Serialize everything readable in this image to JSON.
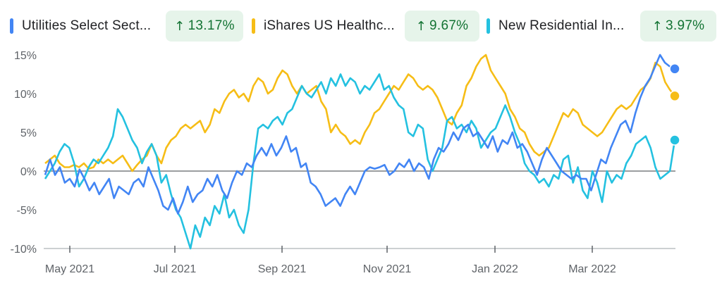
{
  "chart_data": {
    "type": "line",
    "x_ticks": [
      "May 2021",
      "Jul 2021",
      "Sep 2021",
      "Nov 2021",
      "Jan 2022",
      "Mar 2022"
    ],
    "y_ticks": [
      "15%",
      "10%",
      "5%",
      "0%",
      "-5%",
      "-10%"
    ],
    "ylim": [
      -10,
      15
    ],
    "grid": false,
    "legend_position": "top",
    "series": [
      {
        "name": "Utilities Select Sect...",
        "change": "13.17%",
        "color": "#4285f4",
        "values": [
          -0.5,
          1.5,
          -0.5,
          0.5,
          -1.5,
          -1.0,
          -2.0,
          0.2,
          -1.0,
          -2.5,
          -1.5,
          -3.0,
          -2.0,
          -1.0,
          -3.5,
          -2.0,
          -2.5,
          -3.0,
          -1.5,
          -1.0,
          -2.0,
          0.5,
          -1.0,
          -2.5,
          -4.5,
          -5.0,
          -3.5,
          -5.5,
          -4.0,
          -2.0,
          -4.0,
          -3.0,
          -2.5,
          -1.0,
          -2.0,
          -0.5,
          -2.5,
          -3.5,
          -1.5,
          0.0,
          -0.5,
          1.0,
          0.5,
          2.0,
          3.0,
          2.0,
          3.5,
          2.0,
          3.0,
          4.5,
          2.5,
          3.0,
          0.5,
          1.0,
          -1.5,
          -2.0,
          -3.0,
          -4.5,
          -4.0,
          -3.5,
          -4.5,
          -3.0,
          -2.0,
          -3.0,
          -1.5,
          0.0,
          0.5,
          0.3,
          0.5,
          0.8,
          -0.5,
          0.0,
          1.0,
          0.5,
          1.5,
          0.0,
          1.0,
          0.5,
          -1.0,
          1.5,
          3.0,
          2.5,
          3.5,
          5.0,
          4.0,
          5.5,
          6.0,
          4.5,
          5.0,
          4.0,
          3.0,
          4.5,
          2.5,
          4.0,
          3.5,
          5.0,
          3.0,
          3.5,
          2.5,
          1.0,
          -0.5,
          1.5,
          3.0,
          2.0,
          1.0,
          0.0,
          -0.5,
          -1.0,
          -0.5,
          -1.0,
          -1.0,
          -2.5,
          -0.5,
          1.5,
          1.0,
          3.0,
          4.5,
          6.0,
          6.5,
          5.0,
          7.5,
          9.5,
          11.0,
          12.0,
          13.5,
          15.0,
          14.0,
          13.5,
          13.2
        ],
        "end_value": 13.2
      },
      {
        "name": "iShares US Healthc...",
        "change": "9.67%",
        "color": "#f6bd16",
        "values": [
          1.0,
          1.5,
          2.0,
          1.0,
          0.5,
          0.5,
          0.8,
          0.5,
          1.0,
          0.3,
          0.5,
          1.5,
          1.0,
          1.5,
          1.0,
          1.5,
          2.0,
          1.0,
          0.0,
          0.8,
          1.5,
          2.0,
          3.5,
          2.0,
          1.0,
          3.0,
          4.0,
          4.5,
          5.5,
          6.0,
          5.5,
          6.0,
          6.5,
          5.0,
          6.0,
          8.0,
          7.5,
          9.0,
          10.0,
          10.5,
          9.5,
          10.0,
          9.0,
          11.0,
          12.0,
          11.5,
          10.0,
          10.5,
          12.0,
          13.0,
          12.5,
          11.0,
          10.0,
          11.0,
          10.0,
          10.5,
          11.0,
          9.0,
          8.0,
          5.0,
          6.0,
          5.0,
          4.5,
          3.5,
          4.0,
          3.5,
          5.0,
          6.0,
          7.5,
          8.0,
          9.0,
          10.0,
          11.0,
          10.5,
          11.5,
          12.5,
          12.0,
          11.0,
          10.5,
          11.0,
          10.5,
          9.5,
          8.0,
          6.5,
          6.0,
          7.5,
          8.5,
          11.0,
          12.0,
          13.5,
          14.5,
          15.0,
          13.0,
          12.0,
          11.0,
          10.0,
          8.0,
          7.0,
          5.5,
          5.0,
          3.5,
          2.5,
          2.0,
          2.5,
          3.0,
          4.5,
          6.0,
          7.5,
          7.0,
          8.0,
          7.5,
          6.0,
          5.5,
          5.0,
          4.5,
          5.0,
          6.0,
          7.0,
          8.0,
          8.5,
          8.0,
          8.5,
          9.5,
          10.5,
          11.0,
          12.0,
          14.0,
          13.5,
          11.5,
          10.5,
          9.7
        ],
        "end_value": 9.7
      },
      {
        "name": "New Residential In...",
        "change": "3.97%",
        "color": "#24c1e0",
        "values": [
          -1.0,
          0.0,
          1.0,
          2.5,
          3.5,
          3.0,
          1.0,
          -2.0,
          -1.0,
          0.5,
          1.5,
          1.0,
          2.0,
          3.0,
          4.5,
          8.0,
          7.0,
          5.5,
          4.0,
          3.0,
          1.0,
          2.5,
          3.5,
          2.0,
          -1.5,
          -0.5,
          -3.0,
          -5.0,
          -6.0,
          -8.0,
          -10.0,
          -7.0,
          -8.5,
          -6.0,
          -7.0,
          -4.5,
          -5.5,
          -3.0,
          -6.0,
          -5.0,
          -7.0,
          -8.0,
          -5.0,
          1.0,
          5.5,
          6.0,
          5.5,
          6.5,
          7.0,
          6.0,
          7.5,
          8.0,
          9.5,
          11.0,
          10.0,
          9.5,
          10.5,
          11.5,
          10.0,
          12.0,
          11.0,
          12.5,
          11.0,
          12.0,
          11.5,
          10.0,
          11.0,
          10.5,
          11.5,
          12.5,
          10.5,
          11.0,
          9.5,
          8.5,
          8.0,
          5.0,
          4.5,
          6.0,
          5.5,
          1.5,
          0.0,
          1.5,
          3.0,
          6.5,
          7.0,
          5.5,
          6.0,
          5.0,
          6.5,
          5.5,
          3.0,
          4.0,
          5.0,
          5.5,
          7.0,
          8.5,
          7.0,
          5.0,
          3.5,
          1.0,
          0.0,
          -0.5,
          -1.5,
          -1.0,
          -2.0,
          -0.5,
          -1.0,
          1.5,
          2.0,
          -1.5,
          0.5,
          -2.5,
          -3.5,
          0.0,
          -1.5,
          -4.0,
          0.0,
          -1.5,
          -0.5,
          -1.0,
          1.0,
          2.0,
          3.5,
          4.0,
          4.5,
          3.0,
          0.5,
          -1.0,
          -0.5,
          0.0,
          4.0
        ],
        "end_value": 4.0
      }
    ]
  },
  "colors": {
    "axis": "#5f6368",
    "zero_line": "#5f6368",
    "chip_bg": "#e6f4ea",
    "chip_text": "#137333"
  }
}
